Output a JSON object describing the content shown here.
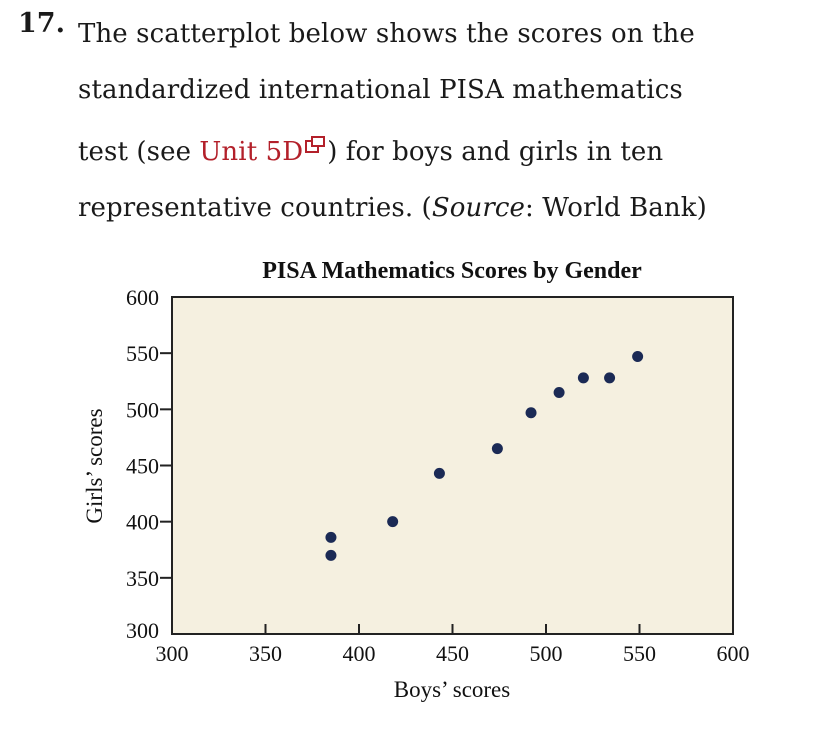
{
  "question": {
    "number": "17.",
    "line1": "The scatterplot below shows the scores on the",
    "line2": "standardized international PISA mathematics",
    "line3_pre": "test (see ",
    "line3_link": "Unit 5D",
    "line3_post": ") for boys and girls in ten",
    "line4_pre": "representative countries. (",
    "line4_italic": "Source",
    "line4_post": ": World Bank)",
    "link_color": "#b3202a",
    "link_icon": "external-link-icon"
  },
  "chart_data": {
    "type": "scatter",
    "title": "PISA Mathematics Scores by Gender",
    "xlabel": "Boys’ scores",
    "ylabel": "Girls’ scores",
    "xlim": [
      300,
      600
    ],
    "ylim": [
      300,
      600
    ],
    "x_ticks": [
      300,
      350,
      400,
      450,
      500,
      550,
      600
    ],
    "y_ticks": [
      300,
      350,
      400,
      450,
      500,
      550,
      600
    ],
    "grid": false,
    "background_color": "#f5f0e0",
    "point_color": "#1b2a55",
    "points": [
      {
        "x": 385,
        "y": 386
      },
      {
        "x": 385,
        "y": 370
      },
      {
        "x": 418,
        "y": 400
      },
      {
        "x": 443,
        "y": 443
      },
      {
        "x": 474,
        "y": 465
      },
      {
        "x": 492,
        "y": 497
      },
      {
        "x": 507,
        "y": 515
      },
      {
        "x": 520,
        "y": 528
      },
      {
        "x": 534,
        "y": 528
      },
      {
        "x": 549,
        "y": 547
      }
    ]
  }
}
